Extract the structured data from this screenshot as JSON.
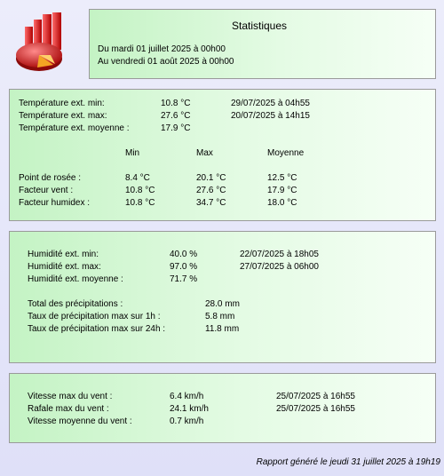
{
  "header": {
    "title": "Statistiques",
    "from": "Du mardi 01 juillet 2025 à 00h00",
    "to": "Au vendredi 01 août 2025 à 00h00"
  },
  "temperature": {
    "min": {
      "label": "Température ext. min:",
      "value": "10.8 °C",
      "date": "29/07/2025 à 04h55"
    },
    "max": {
      "label": "Température ext. max:",
      "value": "27.6 °C",
      "date": "20/07/2025 à 14h15"
    },
    "avg": {
      "label": "Température ext. moyenne :",
      "value": "17.9 °C"
    },
    "columns": {
      "min": "Min",
      "max": "Max",
      "avg": "Moyenne"
    },
    "rows": [
      {
        "label": "Point de rosée :",
        "min": "8.4 °C",
        "max": "20.1 °C",
        "avg": "12.5 °C"
      },
      {
        "label": "Facteur vent :",
        "min": "10.8 °C",
        "max": "27.6 °C",
        "avg": "17.9 °C"
      },
      {
        "label": "Facteur humidex :",
        "min": "10.8 °C",
        "max": "34.7 °C",
        "avg": "18.0 °C"
      }
    ]
  },
  "humidity": {
    "min": {
      "label": "Humidité ext. min:",
      "value": "40.0 %",
      "date": "22/07/2025 à 18h05"
    },
    "max": {
      "label": "Humidité ext. max:",
      "value": "97.0 %",
      "date": "27/07/2025 à 06h00"
    },
    "avg": {
      "label": "Humidité ext. moyenne :",
      "value": "71.7 %"
    }
  },
  "rain": {
    "total": {
      "label": "Total des précipitations :",
      "value": "28.0 mm"
    },
    "rate_1h": {
      "label": "Taux de précipitation max sur 1h :",
      "value": "5.8 mm"
    },
    "rate_24h": {
      "label": "Taux de précipitation max sur 24h :",
      "value": "11.8 mm"
    }
  },
  "wind": {
    "max_speed": {
      "label": "Vitesse max du vent :",
      "value": "6.4 km/h",
      "date": "25/07/2025 à 16h55"
    },
    "gust": {
      "label": "Rafale max du vent :",
      "value": "24.1 km/h",
      "date": "25/07/2025 à 16h55"
    },
    "avg_speed": {
      "label": "Vitesse moyenne du vent :",
      "value": "0.7 km/h"
    }
  },
  "footer": "Rapport généré le jeudi 31 juillet 2025 à 19h19",
  "colors": {
    "panel_green": "#c4f3c4",
    "page_bg": "#e6e7fa",
    "icon_red": "#cc1f1f",
    "icon_orange": "#f3a423"
  },
  "icon": "pie-chart-icon"
}
